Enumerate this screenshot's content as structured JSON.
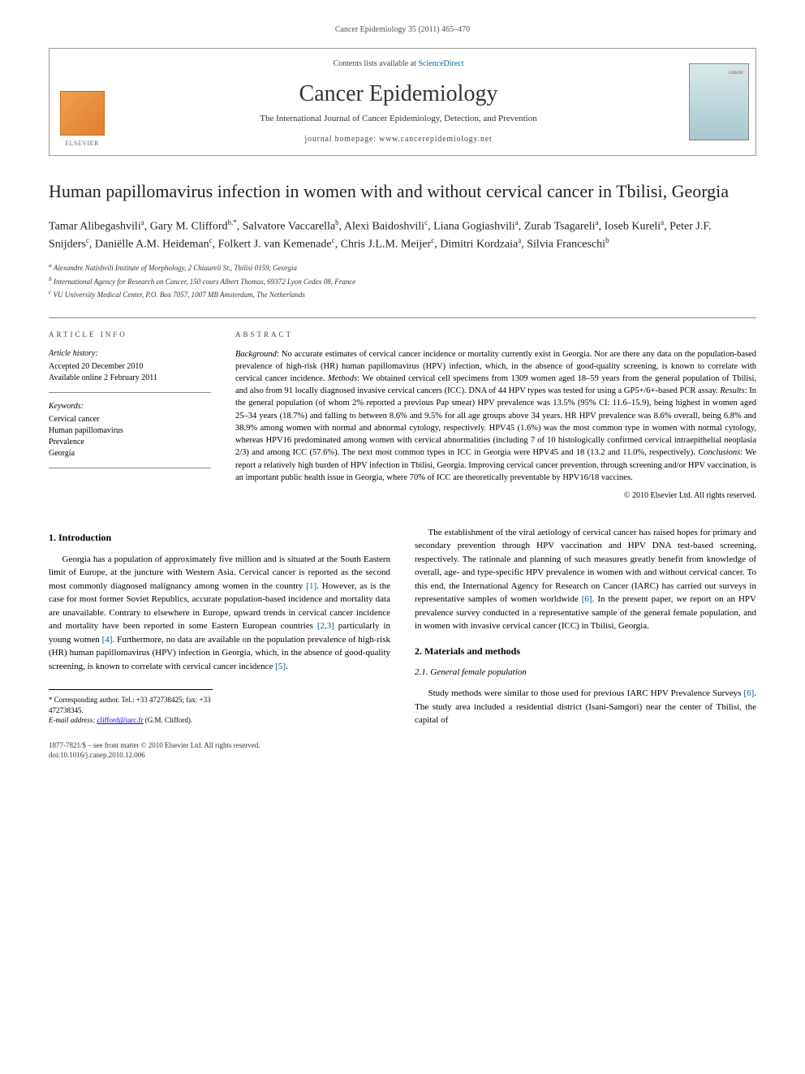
{
  "running_head": "Cancer Epidemiology 35 (2011) 465–470",
  "masthead": {
    "elsevier": "ELSEVIER",
    "contents_prefix": "Contents lists available at ",
    "contents_link": "ScienceDirect",
    "journal_name": "Cancer Epidemiology",
    "journal_subtitle": "The International Journal of Cancer Epidemiology, Detection, and Prevention",
    "homepage_label": "journal homepage: ",
    "homepage_url": "www.cancerepidemiology.net"
  },
  "title": "Human papillomavirus infection in women with and without cervical cancer in Tbilisi, Georgia",
  "authors_html": "Tamar Alibegashvili<sup>a</sup>, Gary M. Clifford<sup>b,*</sup>, Salvatore Vaccarella<sup>b</sup>, Alexi Baidoshvili<sup>c</sup>, Liana Gogiashvili<sup>a</sup>, Zurab Tsagareli<sup>a</sup>, Ioseb Kureli<sup>a</sup>, Peter J.F. Snijders<sup>c</sup>, Daniëlle A.M. Heideman<sup>c</sup>, Folkert J. van Kemenade<sup>c</sup>, Chris J.L.M. Meijer<sup>c</sup>, Dimitri Kordzaia<sup>a</sup>, Silvia Franceschi<sup>b</sup>",
  "affiliations": {
    "a": "Alexandre Natishvili Institute of Morphology, 2 Chiaureli St., Tbilisi 0159, Georgia",
    "b": "International Agency for Research on Cancer, 150 cours Albert Thomas, 69372 Lyon Cedex 08, France",
    "c": "VU University Medical Center, P.O. Box 7057, 1007 MB Amsterdam, The Netherlands"
  },
  "article_info": {
    "heading": "ARTICLE INFO",
    "history_head": "Article history:",
    "accepted": "Accepted 20 December 2010",
    "online": "Available online 2 February 2011",
    "keywords_head": "Keywords:",
    "keywords": [
      "Cervical cancer",
      "Human papillomavirus",
      "Prevalence",
      "Georgia"
    ]
  },
  "abstract": {
    "heading": "ABSTRACT",
    "text": "<i>Background</i>: No accurate estimates of cervical cancer incidence or mortality currently exist in Georgia. Nor are there any data on the population-based prevalence of high-risk (HR) human papillomavirus (HPV) infection, which, in the absence of good-quality screening, is known to correlate with cervical cancer incidence. <i>Methods</i>: We obtained cervical cell specimens from 1309 women aged 18–59 years from the general population of Tbilisi, and also from 91 locally diagnosed invasive cervical cancers (ICC). DNA of 44 HPV types was tested for using a GP5+/6+-based PCR assay. <i>Results</i>: In the general population (of whom 2% reported a previous Pap smear) HPV prevalence was 13.5% (95% CI: 11.6–15.9), being highest in women aged 25–34 years (18.7%) and falling to between 8.6% and 9.5% for all age groups above 34 years. HR HPV prevalence was 8.6% overall, being 6.8% and 38.9% among women with normal and abnormal cytology, respectively. HPV45 (1.6%) was the most common type in women with normal cytology, whereas HPV16 predominated among women with cervical abnormalities (including 7 of 10 histologically confirmed cervical intraepithelial neoplasia 2/3) and among ICC (57.6%). The next most common types in ICC in Georgia were HPV45 and 18 (13.2 and 11.0%, respectively). <i>Conclusions</i>: We report a relatively high burden of HPV infection in Tbilisi, Georgia. Improving cervical cancer prevention, through screening and/or HPV vaccination, is an important public health issue in Georgia, where 70% of ICC are theoretically preventable by HPV16/18 vaccines.",
    "copyright": "© 2010 Elsevier Ltd. All rights reserved."
  },
  "sections": {
    "intro_head": "1. Introduction",
    "intro_p1": "Georgia has a population of approximately five million and is situated at the South Eastern limit of Europe, at the juncture with Western Asia. Cervical cancer is reported as the second most commonly diagnosed malignancy among women in the country [1]. However, as is the case for most former Soviet Republics, accurate population-based incidence and mortality data are unavailable. Contrary to elsewhere in Europe, upward trends in cervical cancer incidence and mortality have been reported in some Eastern European countries [2,3] particularly in young women [4]. Furthermore, no data are available on the population prevalence of high-risk (HR) human papillomavirus (HPV) infection in Georgia, which, in the absence of good-quality screening, is known to correlate with cervical cancer incidence [5].",
    "intro_p2": "The establishment of the viral aetiology of cervical cancer has raised hopes for primary and secondary prevention through HPV vaccination and HPV DNA test-based screening, respectively. The rationale and planning of such measures greatly benefit from knowledge of overall, age- and type-specific HPV prevalence in women with and without cervical cancer. To this end, the International Agency for Research on Cancer (IARC) has carried out surveys in representative samples of women worldwide [6]. In the present paper, we report on an HPV prevalence survey conducted in a representative sample of the general female population, and in women with invasive cervical cancer (ICC) in Tbilisi, Georgia.",
    "methods_head": "2. Materials and methods",
    "methods_sub1": "2.1. General female population",
    "methods_p1": "Study methods were similar to those used for previous IARC HPV Prevalence Surveys [6]. The study area included a residential district (Isani-Samgori) near the center of Tbilisi, the capital of"
  },
  "footnotes": {
    "corr": "* Corresponding author. Tel.: +33 472738425; fax: +33 472738345.",
    "email_label": "E-mail address: ",
    "email": "clifford@iarc.fr",
    "email_suffix": " (G.M. Clifford)."
  },
  "footer": {
    "issn": "1877-7821/$ – see front matter © 2010 Elsevier Ltd. All rights reserved.",
    "doi": "doi:10.1016/j.canep.2010.12.006"
  },
  "colors": {
    "link": "#0055aa",
    "rule": "#888888",
    "text": "#000000"
  }
}
